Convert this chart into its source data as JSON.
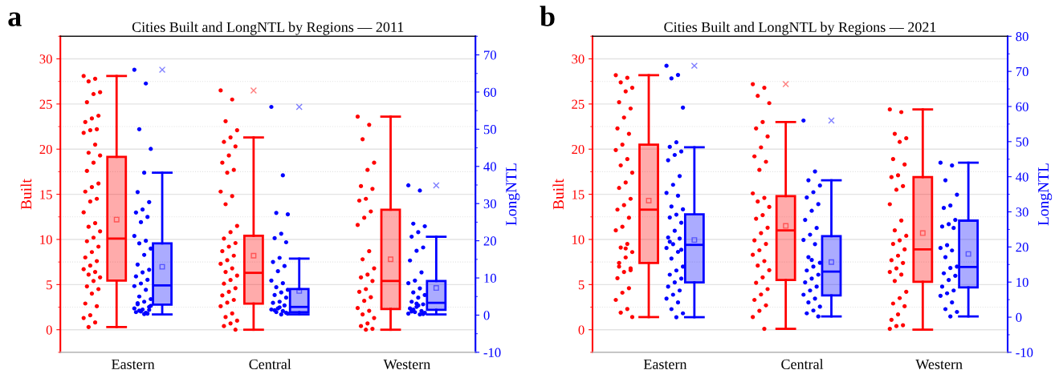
{
  "chart_data": [
    {
      "type": "box",
      "title": "Cities Built and LongNTL by Regions — 2011",
      "ylabel": "Built",
      "y2label": "LongNTL",
      "annotations": [
        "a"
      ],
      "categories": [
        "Eastern",
        "Central",
        "Western"
      ],
      "ylim": [
        -2.5,
        32.5
      ],
      "yticks": [
        0,
        5,
        10,
        15,
        20,
        25,
        30
      ],
      "y2lim": [
        -10,
        75
      ],
      "y2ticks": [
        -10,
        0,
        10,
        20,
        30,
        40,
        50,
        60,
        70
      ],
      "grid": "y",
      "series": [
        {
          "type": "box",
          "color": "#ff0000",
          "axis": "y",
          "boxes": [
            {
              "low": 0.3,
              "q1": 5.45,
              "median": 10.1,
              "q3": 19.15,
              "high": 28.1,
              "mean": 12.2
            },
            {
              "low": 0.0,
              "q1": 2.9,
              "median": 6.3,
              "q3": 10.4,
              "high": 21.3,
              "mean": 8.2,
              "outliers": [
                26.5
              ]
            },
            {
              "low": 0.0,
              "q1": 2.3,
              "median": 5.4,
              "q3": 13.3,
              "high": 23.6,
              "mean": 7.8
            }
          ]
        },
        {
          "type": "box",
          "color": "#0000ff",
          "axis": "y2",
          "boxes": [
            {
              "low": 0.2,
              "q1": 2.8,
              "median": 8.0,
              "q3": 19.3,
              "high": 38.3,
              "mean": 13.0,
              "outliers": [
                66.0
              ]
            },
            {
              "low": 0.2,
              "q1": 0.8,
              "median": 2.2,
              "q3": 7.0,
              "high": 15.2,
              "mean": 6.5,
              "outliers": [
                56.0
              ]
            },
            {
              "low": 0.2,
              "q1": 1.4,
              "median": 3.3,
              "q3": 9.2,
              "high": 21.1,
              "mean": 7.3,
              "outliers": [
                34.9
              ]
            }
          ]
        },
        {
          "type": "scatter",
          "color": "#ff0000",
          "axis": "y",
          "x": [
            "Eastern",
            "Eastern",
            "Eastern",
            "Eastern",
            "Eastern",
            "Eastern",
            "Eastern",
            "Eastern",
            "Eastern",
            "Eastern",
            "Eastern",
            "Eastern",
            "Eastern",
            "Eastern",
            "Eastern",
            "Eastern",
            "Eastern",
            "Eastern",
            "Eastern",
            "Eastern",
            "Eastern",
            "Eastern",
            "Eastern",
            "Eastern",
            "Eastern",
            "Eastern",
            "Eastern",
            "Eastern",
            "Eastern",
            "Eastern",
            "Eastern",
            "Eastern",
            "Eastern",
            "Eastern",
            "Eastern",
            "Eastern",
            "Eastern",
            "Eastern",
            "Eastern",
            "Eastern",
            "Eastern",
            "Eastern",
            "Eastern",
            "Eastern",
            "Eastern",
            "Eastern",
            "Eastern"
          ],
          "values": [
            28.1,
            27.8,
            27.5,
            26.3,
            26.1,
            25.2,
            23.7,
            23.4,
            23.0,
            22.2,
            22.1,
            21.8,
            20.5,
            19.6,
            19.3,
            18.5,
            17.6,
            16.2,
            15.8,
            15.3,
            14.5,
            14.2,
            13.0,
            11.8,
            11.4,
            10.9,
            10.2,
            9.8,
            9.2,
            8.6,
            8.0,
            7.6,
            7.1,
            6.7,
            6.4,
            6.1,
            5.8,
            5.4,
            4.8,
            4.5,
            4.0,
            2.9,
            2.6,
            1.6,
            1.3,
            0.8,
            0.3
          ]
        },
        {
          "type": "scatter",
          "color": "#ff0000",
          "axis": "y",
          "x": [
            "Central",
            "Central",
            "Central",
            "Central",
            "Central",
            "Central",
            "Central",
            "Central",
            "Central",
            "Central",
            "Central",
            "Central",
            "Central",
            "Central",
            "Central",
            "Central",
            "Central",
            "Central",
            "Central",
            "Central",
            "Central",
            "Central",
            "Central",
            "Central",
            "Central",
            "Central",
            "Central",
            "Central",
            "Central",
            "Central",
            "Central",
            "Central",
            "Central",
            "Central",
            "Central",
            "Central",
            "Central",
            "Central",
            "Central",
            "Central"
          ],
          "values": [
            26.5,
            25.5,
            23.1,
            22.1,
            21.3,
            20.8,
            20.3,
            19.3,
            18.5,
            17.7,
            17.4,
            15.3,
            14.8,
            13.9,
            11.5,
            10.8,
            10.1,
            9.6,
            9.2,
            8.7,
            8.2,
            7.7,
            7.3,
            6.8,
            6.4,
            6.0,
            5.5,
            5.1,
            4.6,
            4.2,
            3.8,
            3.3,
            3.0,
            2.6,
            1.8,
            1.4,
            1.0,
            0.7,
            0.4,
            0.0
          ]
        },
        {
          "type": "scatter",
          "color": "#ff0000",
          "axis": "y",
          "x": [
            "Western",
            "Western",
            "Western",
            "Western",
            "Western",
            "Western",
            "Western",
            "Western",
            "Western",
            "Western",
            "Western",
            "Western",
            "Western",
            "Western",
            "Western",
            "Western",
            "Western",
            "Western",
            "Western",
            "Western",
            "Western",
            "Western",
            "Western",
            "Western",
            "Western",
            "Western",
            "Western",
            "Western",
            "Western",
            "Western"
          ],
          "values": [
            23.6,
            22.7,
            21.1,
            18.5,
            17.7,
            15.9,
            15.6,
            14.5,
            14.3,
            13.1,
            12.4,
            11.6,
            8.7,
            7.8,
            6.8,
            6.1,
            5.8,
            5.4,
            4.5,
            4.2,
            3.6,
            3.2,
            2.4,
            2.1,
            1.7,
            1.3,
            0.7,
            0.4,
            0.1,
            0.0
          ]
        },
        {
          "type": "scatter",
          "color": "#0000ff",
          "axis": "y2",
          "x": [
            "Eastern",
            "Eastern",
            "Eastern",
            "Eastern",
            "Eastern",
            "Eastern",
            "Eastern",
            "Eastern",
            "Eastern",
            "Eastern",
            "Eastern",
            "Eastern",
            "Eastern",
            "Eastern",
            "Eastern",
            "Eastern",
            "Eastern",
            "Eastern",
            "Eastern",
            "Eastern",
            "Eastern",
            "Eastern",
            "Eastern",
            "Eastern",
            "Eastern",
            "Eastern",
            "Eastern",
            "Eastern",
            "Eastern",
            "Eastern",
            "Eastern",
            "Eastern",
            "Eastern",
            "Eastern",
            "Eastern",
            "Eastern",
            "Eastern",
            "Eastern",
            "Eastern",
            "Eastern"
          ],
          "values": [
            66.0,
            62.3,
            50.0,
            44.7,
            38.3,
            33.1,
            30.4,
            28.4,
            27.6,
            26.4,
            25.0,
            21.3,
            20.0,
            19.3,
            17.9,
            16.2,
            13.6,
            12.2,
            11.5,
            10.4,
            9.5,
            8.5,
            7.8,
            6.8,
            5.0,
            4.3,
            3.6,
            2.9,
            2.2,
            1.5,
            0.8,
            0.4,
            1.0,
            1.8,
            0.6,
            1.2,
            2.5,
            0.3,
            3.2,
            1.4
          ]
        },
        {
          "type": "scatter",
          "color": "#0000ff",
          "axis": "y2",
          "x": [
            "Central",
            "Central",
            "Central",
            "Central",
            "Central",
            "Central",
            "Central",
            "Central",
            "Central",
            "Central",
            "Central",
            "Central",
            "Central",
            "Central",
            "Central",
            "Central",
            "Central",
            "Central",
            "Central",
            "Central",
            "Central",
            "Central",
            "Central",
            "Central",
            "Central",
            "Central",
            "Central",
            "Central",
            "Central",
            "Central"
          ],
          "values": [
            56.0,
            37.6,
            27.5,
            27.1,
            21.9,
            20.7,
            19.6,
            15.4,
            14.3,
            13.2,
            11.8,
            9.3,
            8.6,
            7.5,
            6.8,
            6.1,
            5.4,
            4.7,
            3.6,
            3.3,
            2.6,
            1.8,
            1.5,
            1.1,
            0.8,
            0.4,
            0.2,
            1.3,
            0.6,
            2.1
          ]
        },
        {
          "type": "scatter",
          "color": "#0000ff",
          "axis": "y2",
          "x": [
            "Western",
            "Western",
            "Western",
            "Western",
            "Western",
            "Western",
            "Western",
            "Western",
            "Western",
            "Western",
            "Western",
            "Western",
            "Western",
            "Western",
            "Western",
            "Western",
            "Western",
            "Western",
            "Western",
            "Western",
            "Western",
            "Western",
            "Western",
            "Western",
            "Western",
            "Western",
            "Western",
            "Western",
            "Western",
            "Western"
          ],
          "values": [
            34.9,
            33.5,
            24.6,
            23.9,
            22.3,
            21.1,
            18.2,
            17.3,
            14.7,
            11.5,
            9.3,
            8.6,
            7.2,
            6.1,
            5.4,
            4.7,
            3.6,
            2.9,
            2.2,
            1.8,
            1.1,
            0.8,
            0.4,
            0.2,
            1.5,
            0.6,
            2.6,
            1.0,
            0.3,
            3.1
          ]
        }
      ]
    },
    {
      "type": "box",
      "title": "Cities Built and LongNTL by Regions — 2021",
      "ylabel": "Built",
      "y2label": "LongNTL",
      "annotations": [
        "b"
      ],
      "categories": [
        "Eastern",
        "Central",
        "Western"
      ],
      "ylim": [
        -2.5,
        32.5
      ],
      "yticks": [
        0,
        5,
        10,
        15,
        20,
        25,
        30
      ],
      "y2lim": [
        -10,
        80
      ],
      "y2ticks": [
        -10,
        0,
        10,
        20,
        30,
        40,
        50,
        60,
        70,
        80
      ],
      "grid": "y",
      "series": [
        {
          "type": "box",
          "color": "#ff0000",
          "axis": "y",
          "boxes": [
            {
              "low": 1.4,
              "q1": 7.4,
              "median": 13.3,
              "q3": 20.5,
              "high": 28.2,
              "mean": 14.3
            },
            {
              "low": 0.1,
              "q1": 5.5,
              "median": 11.0,
              "q3": 14.8,
              "high": 23.0,
              "mean": 11.5,
              "outliers": [
                27.2
              ]
            },
            {
              "low": 0.0,
              "q1": 5.3,
              "median": 8.9,
              "q3": 16.9,
              "high": 24.4,
              "mean": 10.7
            }
          ]
        },
        {
          "type": "box",
          "color": "#0000ff",
          "axis": "y2",
          "boxes": [
            {
              "low": 0.0,
              "q1": 9.9,
              "median": 20.6,
              "q3": 29.3,
              "high": 48.4,
              "mean": 22.0,
              "outliers": [
                71.6
              ]
            },
            {
              "low": 0.2,
              "q1": 6.2,
              "median": 13.0,
              "q3": 23.1,
              "high": 39.0,
              "mean": 15.7,
              "outliers": [
                56.0
              ]
            },
            {
              "low": 0.2,
              "q1": 8.5,
              "median": 14.3,
              "q3": 27.5,
              "high": 44.0,
              "mean": 18.0
            }
          ]
        },
        {
          "type": "scatter",
          "color": "#ff0000",
          "axis": "y",
          "x": [
            "Eastern",
            "Eastern",
            "Eastern",
            "Eastern",
            "Eastern",
            "Eastern",
            "Eastern",
            "Eastern",
            "Eastern",
            "Eastern",
            "Eastern",
            "Eastern",
            "Eastern",
            "Eastern",
            "Eastern",
            "Eastern",
            "Eastern",
            "Eastern",
            "Eastern",
            "Eastern",
            "Eastern",
            "Eastern",
            "Eastern",
            "Eastern",
            "Eastern",
            "Eastern",
            "Eastern",
            "Eastern",
            "Eastern",
            "Eastern",
            "Eastern",
            "Eastern",
            "Eastern",
            "Eastern",
            "Eastern",
            "Eastern",
            "Eastern",
            "Eastern",
            "Eastern",
            "Eastern"
          ],
          "values": [
            28.2,
            27.9,
            27.4,
            26.8,
            26.4,
            25.2,
            24.5,
            23.5,
            22.3,
            21.7,
            20.5,
            19.9,
            18.9,
            18.2,
            17.4,
            16.3,
            15.7,
            14.5,
            13.8,
            13.3,
            12.4,
            11.4,
            11.0,
            9.5,
            9.1,
            8.6,
            8.0,
            7.4,
            6.8,
            6.4,
            5.7,
            4.6,
            4.1,
            3.3,
            2.3,
            1.9,
            1.4,
            9.0,
            7.0,
            6.6
          ]
        },
        {
          "type": "scatter",
          "color": "#ff0000",
          "axis": "y",
          "x": [
            "Central",
            "Central",
            "Central",
            "Central",
            "Central",
            "Central",
            "Central",
            "Central",
            "Central",
            "Central",
            "Central",
            "Central",
            "Central",
            "Central",
            "Central",
            "Central",
            "Central",
            "Central",
            "Central",
            "Central",
            "Central",
            "Central",
            "Central",
            "Central",
            "Central",
            "Central",
            "Central",
            "Central",
            "Central",
            "Central",
            "Central",
            "Central",
            "Central",
            "Central",
            "Central"
          ],
          "values": [
            27.2,
            26.8,
            25.9,
            25.1,
            23.0,
            22.3,
            21.4,
            20.2,
            19.2,
            18.6,
            17.7,
            15.1,
            14.6,
            14.2,
            13.6,
            12.7,
            12.3,
            11.3,
            10.7,
            9.9,
            9.5,
            8.8,
            8.3,
            7.6,
            7.1,
            6.6,
            5.8,
            5.2,
            4.5,
            3.9,
            3.3,
            2.7,
            2.1,
            1.4,
            0.1
          ]
        },
        {
          "type": "scatter",
          "color": "#ff0000",
          "axis": "y",
          "x": [
            "Western",
            "Western",
            "Western",
            "Western",
            "Western",
            "Western",
            "Western",
            "Western",
            "Western",
            "Western",
            "Western",
            "Western",
            "Western",
            "Western",
            "Western",
            "Western",
            "Western",
            "Western",
            "Western",
            "Western",
            "Western",
            "Western",
            "Western",
            "Western",
            "Western",
            "Western",
            "Western",
            "Western",
            "Western",
            "Western",
            "Western",
            "Western",
            "Western",
            "Western"
          ],
          "values": [
            24.4,
            24.1,
            21.7,
            21.2,
            20.8,
            18.9,
            18.3,
            17.1,
            16.9,
            15.9,
            15.5,
            13.9,
            12.1,
            11.0,
            10.4,
            9.9,
            9.5,
            8.9,
            8.2,
            7.7,
            7.4,
            6.8,
            6.4,
            6.1,
            5.4,
            4.2,
            3.5,
            2.9,
            2.6,
            1.7,
            1.1,
            0.5,
            0.4,
            0.1
          ]
        },
        {
          "type": "scatter",
          "color": "#0000ff",
          "axis": "y2",
          "x": [
            "Eastern",
            "Eastern",
            "Eastern",
            "Eastern",
            "Eastern",
            "Eastern",
            "Eastern",
            "Eastern",
            "Eastern",
            "Eastern",
            "Eastern",
            "Eastern",
            "Eastern",
            "Eastern",
            "Eastern",
            "Eastern",
            "Eastern",
            "Eastern",
            "Eastern",
            "Eastern",
            "Eastern",
            "Eastern",
            "Eastern",
            "Eastern",
            "Eastern",
            "Eastern",
            "Eastern",
            "Eastern",
            "Eastern",
            "Eastern",
            "Eastern",
            "Eastern",
            "Eastern",
            "Eastern",
            "Eastern",
            "Eastern",
            "Eastern",
            "Eastern",
            "Eastern",
            "Eastern"
          ],
          "values": [
            71.6,
            69.0,
            68.0,
            59.7,
            49.8,
            48.5,
            47.2,
            46.2,
            44.7,
            40.2,
            37.7,
            35.4,
            34.6,
            31.5,
            30.7,
            29.2,
            28.4,
            26.9,
            24.6,
            22.7,
            22.4,
            20.8,
            19.7,
            18.6,
            16.7,
            14.4,
            13.3,
            12.1,
            11.0,
            9.9,
            8.7,
            7.6,
            6.4,
            5.3,
            4.2,
            2.3,
            1.1,
            0.0,
            21.5,
            19.2
          ]
        },
        {
          "type": "scatter",
          "color": "#0000ff",
          "axis": "y2",
          "x": [
            "Central",
            "Central",
            "Central",
            "Central",
            "Central",
            "Central",
            "Central",
            "Central",
            "Central",
            "Central",
            "Central",
            "Central",
            "Central",
            "Central",
            "Central",
            "Central",
            "Central",
            "Central",
            "Central",
            "Central",
            "Central",
            "Central",
            "Central",
            "Central",
            "Central",
            "Central",
            "Central",
            "Central",
            "Central",
            "Central"
          ],
          "values": [
            56.0,
            41.5,
            39.0,
            37.5,
            35.6,
            34.1,
            32.2,
            30.3,
            27.7,
            25.4,
            23.5,
            22.0,
            20.8,
            17.1,
            15.5,
            14.4,
            13.3,
            12.1,
            11.0,
            9.9,
            8.7,
            7.6,
            6.4,
            5.3,
            4.2,
            3.0,
            1.9,
            1.1,
            0.2,
            16.3
          ]
        },
        {
          "type": "scatter",
          "color": "#0000ff",
          "axis": "y2",
          "x": [
            "Western",
            "Western",
            "Western",
            "Western",
            "Western",
            "Western",
            "Western",
            "Western",
            "Western",
            "Western",
            "Western",
            "Western",
            "Western",
            "Western",
            "Western",
            "Western",
            "Western",
            "Western",
            "Western",
            "Western",
            "Western",
            "Western",
            "Western",
            "Western",
            "Western",
            "Western",
            "Western"
          ],
          "values": [
            44.0,
            43.2,
            39.0,
            34.9,
            31.8,
            31.1,
            27.7,
            26.5,
            25.8,
            25.4,
            20.5,
            19.7,
            19.0,
            17.1,
            14.4,
            14.0,
            12.5,
            11.8,
            10.6,
            8.7,
            7.6,
            6.8,
            6.1,
            4.2,
            2.3,
            1.5,
            0.2
          ]
        }
      ]
    }
  ]
}
